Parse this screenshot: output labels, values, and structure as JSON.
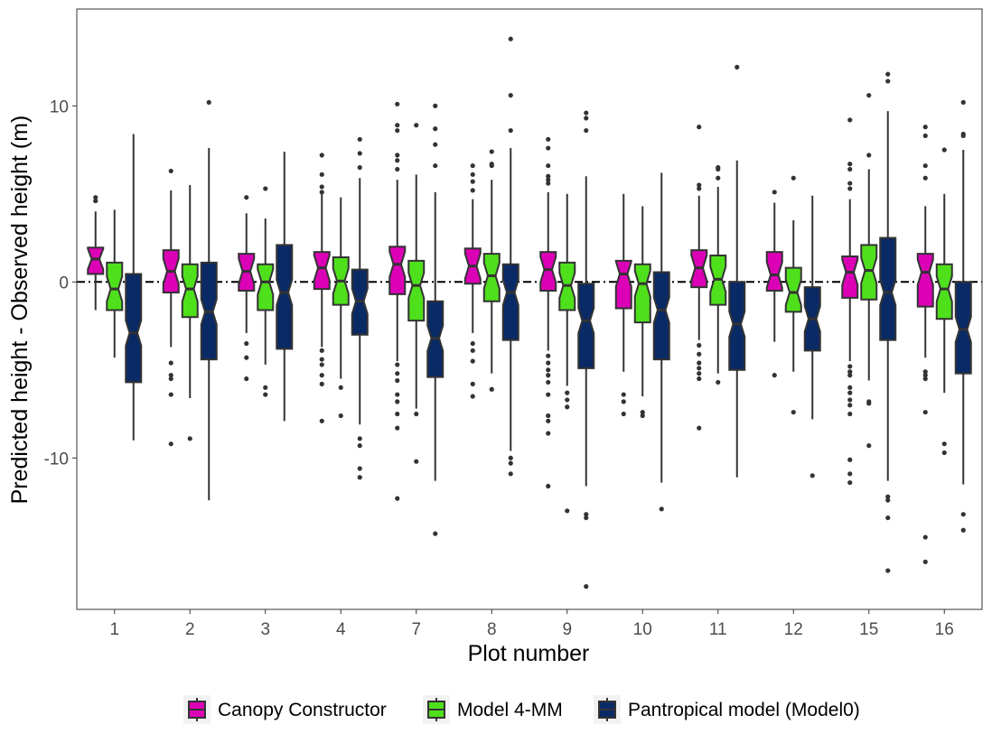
{
  "chart_data": {
    "type": "boxplot",
    "title": "",
    "xlabel": "Plot number",
    "ylabel": "Predicted height - Observed height (m)",
    "ylim": [
      -18.6,
      15.5
    ],
    "yticks": [
      -10,
      0,
      10
    ],
    "grid": false,
    "reference_line": {
      "y": 0,
      "style": "dotdash",
      "color": "#000000"
    },
    "legend_position": "bottom",
    "categories": [
      "1",
      "2",
      "3",
      "4",
      "7",
      "8",
      "9",
      "10",
      "11",
      "12",
      "15",
      "16"
    ],
    "series": [
      {
        "name": "Canopy Constructor",
        "color": "#DB00B6",
        "boxes": [
          {
            "q1": 0.45,
            "median": 1.3,
            "q3": 1.95,
            "lower_whisker": -1.6,
            "upper_whisker": 4.0,
            "outliers": [
              4.6,
              4.8
            ]
          },
          {
            "q1": -0.6,
            "median": 0.6,
            "q3": 1.8,
            "lower_whisker": -3.7,
            "upper_whisker": 5.2,
            "outliers": [
              6.3,
              -4.6,
              -5.3,
              -5.5,
              -6.4,
              -9.2
            ]
          },
          {
            "q1": -0.5,
            "median": 0.6,
            "q3": 1.6,
            "lower_whisker": -2.9,
            "upper_whisker": 3.9,
            "outliers": [
              4.8,
              -3.5,
              -4.3,
              -5.5
            ]
          },
          {
            "q1": -0.4,
            "median": 0.8,
            "q3": 1.7,
            "lower_whisker": -3.7,
            "upper_whisker": 5.0,
            "outliers": [
              7.2,
              6.1,
              5.4,
              5.1,
              -3.9,
              -4.4,
              -4.7,
              -5.3,
              -5.8,
              -7.9
            ]
          },
          {
            "q1": -0.7,
            "median": 1.0,
            "q3": 2.0,
            "lower_whisker": -4.5,
            "upper_whisker": 5.8,
            "outliers": [
              10.1,
              8.9,
              8.6,
              7.2,
              6.9,
              6.4,
              -4.7,
              -5.2,
              -5.6,
              -6.4,
              -6.8,
              -7.5,
              -8.3,
              -12.3
            ]
          },
          {
            "q1": -0.1,
            "median": 0.9,
            "q3": 1.9,
            "lower_whisker": -2.9,
            "upper_whisker": 4.7,
            "outliers": [
              6.6,
              6.1,
              5.7,
              5.2,
              -3.5,
              -3.9,
              -4.5,
              -5.8,
              -6.5
            ]
          },
          {
            "q1": -0.5,
            "median": 0.7,
            "q3": 1.7,
            "lower_whisker": -3.9,
            "upper_whisker": 5.1,
            "outliers": [
              8.1,
              7.6,
              6.6,
              6.0,
              5.8,
              5.6,
              -4.2,
              -4.6,
              -5.0,
              -5.3,
              -5.7,
              -6.4,
              -7.6,
              -7.9,
              -8.6,
              -11.6
            ]
          },
          {
            "q1": -1.5,
            "median": 0.45,
            "q3": 1.2,
            "lower_whisker": -5.1,
            "upper_whisker": 5.0,
            "outliers": [
              -6.4,
              -6.8,
              -7.5
            ]
          },
          {
            "q1": -0.3,
            "median": 0.8,
            "q3": 1.8,
            "lower_whisker": -3.3,
            "upper_whisker": 4.9,
            "outliers": [
              8.8,
              5.5,
              5.3,
              -3.6,
              -4.1,
              -4.6,
              -4.9,
              -5.2,
              -5.5,
              -8.3
            ]
          },
          {
            "q1": -0.5,
            "median": 0.4,
            "q3": 1.7,
            "lower_whisker": -3.4,
            "upper_whisker": 4.5,
            "outliers": [
              5.1,
              -5.3
            ]
          },
          {
            "q1": -0.9,
            "median": 0.55,
            "q3": 1.45,
            "lower_whisker": -4.5,
            "upper_whisker": 4.7,
            "outliers": [
              9.2,
              6.7,
              6.4,
              5.6,
              5.3,
              -4.8,
              -5.1,
              -5.3,
              -6.0,
              -6.3,
              -6.7,
              -7.0,
              -7.5,
              -10.1,
              -10.9,
              -11.4
            ]
          },
          {
            "q1": -1.4,
            "median": 0.55,
            "q3": 1.6,
            "lower_whisker": -4.3,
            "upper_whisker": 4.3,
            "outliers": [
              8.8,
              8.3,
              6.6,
              5.9,
              -5.1,
              -5.3,
              -5.5,
              -7.4,
              -14.5,
              -15.9
            ]
          }
        ]
      },
      {
        "name": "Model 4-MM",
        "color": "#4FE01C",
        "boxes": [
          {
            "q1": -1.6,
            "median": -0.4,
            "q3": 1.1,
            "lower_whisker": -4.3,
            "upper_whisker": 4.1,
            "outliers": []
          },
          {
            "q1": -2.0,
            "median": -0.4,
            "q3": 1.0,
            "lower_whisker": -6.6,
            "upper_whisker": 5.5,
            "outliers": [
              -8.9
            ]
          },
          {
            "q1": -1.6,
            "median": 0.0,
            "q3": 1.0,
            "lower_whisker": -4.7,
            "upper_whisker": 3.6,
            "outliers": [
              5.3,
              -6.0,
              -6.4
            ]
          },
          {
            "q1": -1.3,
            "median": 0.05,
            "q3": 1.4,
            "lower_whisker": -5.5,
            "upper_whisker": 4.8,
            "outliers": [
              -6.0,
              -7.6
            ]
          },
          {
            "q1": -2.2,
            "median": -0.2,
            "q3": 1.2,
            "lower_whisker": -7.2,
            "upper_whisker": 6.1,
            "outliers": [
              8.9,
              -7.5,
              -10.2
            ]
          },
          {
            "q1": -1.1,
            "median": 0.35,
            "q3": 1.6,
            "lower_whisker": -5.2,
            "upper_whisker": 5.8,
            "outliers": [
              7.4,
              6.7,
              6.6,
              -6.1
            ]
          },
          {
            "q1": -1.6,
            "median": -0.2,
            "q3": 1.1,
            "lower_whisker": -5.9,
            "upper_whisker": 5.0,
            "outliers": [
              -6.3,
              -6.7,
              -7.1,
              -13.0
            ]
          },
          {
            "q1": -2.3,
            "median": -0.1,
            "q3": 1.0,
            "lower_whisker": -6.5,
            "upper_whisker": 4.3,
            "outliers": [
              -7.4,
              -7.6
            ]
          },
          {
            "q1": -1.3,
            "median": 0.15,
            "q3": 1.5,
            "lower_whisker": -5.2,
            "upper_whisker": 5.4,
            "outliers": [
              6.5,
              6.4,
              5.9,
              -5.7
            ]
          },
          {
            "q1": -1.7,
            "median": -0.6,
            "q3": 0.8,
            "lower_whisker": -5.1,
            "upper_whisker": 3.5,
            "outliers": [
              5.9,
              -7.4
            ]
          },
          {
            "q1": -1.0,
            "median": 0.65,
            "q3": 2.1,
            "lower_whisker": -5.6,
            "upper_whisker": 6.4,
            "outliers": [
              10.6,
              7.2,
              -6.8,
              -6.9,
              -9.3
            ]
          },
          {
            "q1": -2.1,
            "median": -0.4,
            "q3": 1.0,
            "lower_whisker": -6.3,
            "upper_whisker": 5.0,
            "outliers": [
              7.5,
              -9.2,
              -9.7
            ]
          }
        ]
      },
      {
        "name": "Pantropical model (Model0)",
        "color": "#0A2A66",
        "boxes": [
          {
            "q1": -5.7,
            "median": -2.9,
            "q3": 0.45,
            "lower_whisker": -9.0,
            "upper_whisker": 8.4,
            "outliers": []
          },
          {
            "q1": -4.4,
            "median": -1.7,
            "q3": 1.1,
            "lower_whisker": -12.4,
            "upper_whisker": 7.6,
            "outliers": [
              10.2
            ]
          },
          {
            "q1": -3.8,
            "median": -0.6,
            "q3": 2.1,
            "lower_whisker": -7.9,
            "upper_whisker": 7.4,
            "outliers": []
          },
          {
            "q1": -3.0,
            "median": -1.1,
            "q3": 0.7,
            "lower_whisker": -8.1,
            "upper_whisker": 5.9,
            "outliers": [
              8.1,
              7.3,
              6.5,
              -8.9,
              -9.3,
              -10.6,
              -11.1
            ]
          },
          {
            "q1": -5.4,
            "median": -3.2,
            "q3": -1.1,
            "lower_whisker": -11.3,
            "upper_whisker": 5.1,
            "outliers": [
              10.0,
              8.7,
              7.8,
              6.6,
              -14.3
            ]
          },
          {
            "q1": -3.3,
            "median": -0.6,
            "q3": 1.0,
            "lower_whisker": -9.6,
            "upper_whisker": 7.6,
            "outliers": [
              13.8,
              10.6,
              8.6,
              -10.0,
              -10.3,
              -10.9
            ]
          },
          {
            "q1": -4.9,
            "median": -2.2,
            "q3": -0.1,
            "lower_whisker": -11.6,
            "upper_whisker": 6.0,
            "outliers": [
              9.6,
              9.3,
              8.6,
              -13.2,
              -13.4,
              -17.3
            ]
          },
          {
            "q1": -4.4,
            "median": -1.6,
            "q3": 0.55,
            "lower_whisker": -11.4,
            "upper_whisker": 6.2,
            "outliers": [
              -12.9
            ]
          },
          {
            "q1": -5.0,
            "median": -2.4,
            "q3": 0.0,
            "lower_whisker": -11.1,
            "upper_whisker": 6.9,
            "outliers": [
              12.2
            ]
          },
          {
            "q1": -3.9,
            "median": -2.1,
            "q3": -0.3,
            "lower_whisker": -7.8,
            "upper_whisker": 4.9,
            "outliers": [
              -11.0
            ]
          },
          {
            "q1": -3.3,
            "median": -0.6,
            "q3": 2.5,
            "lower_whisker": -11.3,
            "upper_whisker": 9.7,
            "outliers": [
              11.8,
              11.4,
              -12.2,
              -12.4,
              -13.4,
              -16.4
            ]
          },
          {
            "q1": -5.2,
            "median": -2.7,
            "q3": 0.0,
            "lower_whisker": -11.5,
            "upper_whisker": 7.5,
            "outliers": [
              10.2,
              8.4,
              8.3,
              -13.2,
              -14.1
            ]
          }
        ]
      }
    ]
  }
}
